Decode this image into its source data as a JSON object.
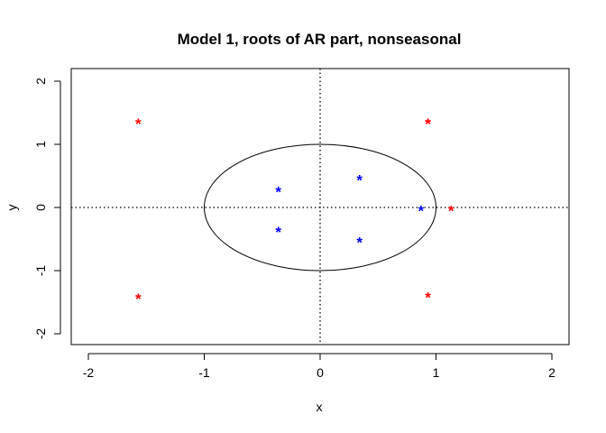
{
  "chart_data": {
    "type": "scatter",
    "title": "Model 1, roots of AR part, nonseasonal",
    "xlabel": "x",
    "ylabel": "y",
    "xlim": [
      -2,
      2
    ],
    "ylim": [
      -2,
      2
    ],
    "xticks": [
      -2,
      -1,
      0,
      1,
      2
    ],
    "yticks": [
      -2,
      -1,
      0,
      1,
      2
    ],
    "marker": "*",
    "unit_circle": true,
    "reference_lines": {
      "x": 0,
      "y": 0,
      "style": "dotted"
    },
    "grid": false,
    "legend": "none",
    "series": [
      {
        "color": "#ff0000",
        "x": [
          -1.57,
          0.93,
          -1.57,
          0.93,
          1.13,
          0.93
        ],
        "y": [
          1.37,
          1.37,
          -1.4,
          -1.38,
          -0.01,
          1.37
        ]
      },
      {
        "color": "#0000ff",
        "x": [
          0.34,
          -0.36,
          -0.36,
          0.34,
          0.87
        ],
        "y": [
          0.48,
          0.29,
          -0.34,
          -0.51,
          -0.01
        ]
      }
    ]
  }
}
